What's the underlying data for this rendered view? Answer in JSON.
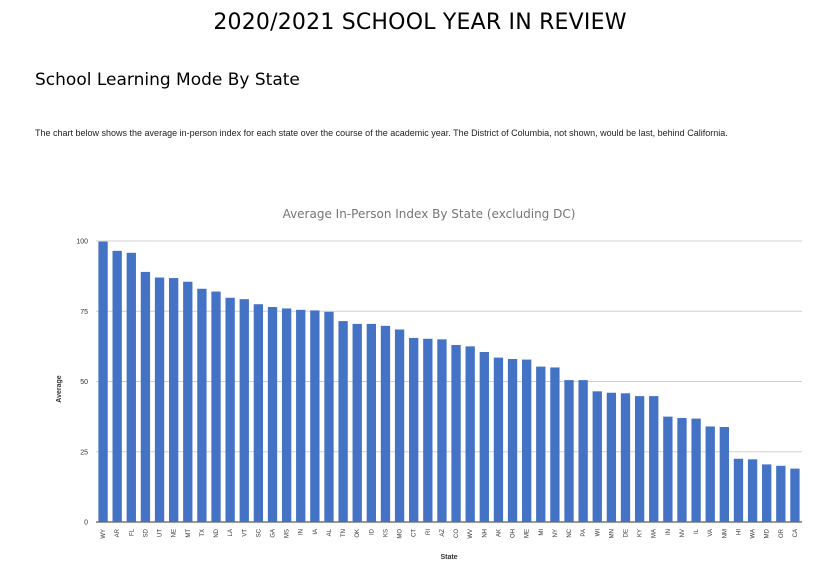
{
  "page": {
    "title": "2020/2021 SCHOOL YEAR IN REVIEW",
    "section_title": "School Learning Mode By State",
    "description": "The chart below shows the average in-person index for each state over the course of the academic year. The District of Columbia, not shown, would be last, behind California."
  },
  "chart_data": {
    "type": "bar",
    "title": "Average In-Person Index By State (excluding DC)",
    "xlabel": "State",
    "ylabel": "Average",
    "ylim": [
      0,
      100
    ],
    "yticks": [
      0,
      25,
      50,
      75,
      100
    ],
    "grid": true,
    "bar_color": "#4472c4",
    "categories": [
      "WY",
      "AR",
      "FL",
      "SD",
      "UT",
      "NE",
      "MT",
      "TX",
      "ND",
      "LA",
      "VT",
      "SC",
      "GA",
      "MS",
      "IN",
      "IA",
      "AL",
      "TN",
      "OK",
      "ID",
      "KS",
      "MO",
      "CT",
      "RI",
      "AZ",
      "CO",
      "WV",
      "NH",
      "AK",
      "OH",
      "ME",
      "MI",
      "NY",
      "NC",
      "PA",
      "WI",
      "MN",
      "DE",
      "KY",
      "MA",
      "IN",
      "NV",
      "IL",
      "VA",
      "NM",
      "HI",
      "WA",
      "MD",
      "OR",
      "CA"
    ],
    "values": [
      99.8,
      96.5,
      95.8,
      89.0,
      87.0,
      86.8,
      85.5,
      83.0,
      82.0,
      79.8,
      79.3,
      77.5,
      76.5,
      76.0,
      75.5,
      75.3,
      74.8,
      71.5,
      70.5,
      70.5,
      69.8,
      68.5,
      65.5,
      65.2,
      65.0,
      63.0,
      62.5,
      60.5,
      58.5,
      58.0,
      57.8,
      55.3,
      55.0,
      50.5,
      50.5,
      46.5,
      46.0,
      45.8,
      44.8,
      44.8,
      37.5,
      37.0,
      36.8,
      34.0,
      33.8,
      22.5,
      22.3,
      20.5,
      20.0,
      19.0
    ]
  }
}
